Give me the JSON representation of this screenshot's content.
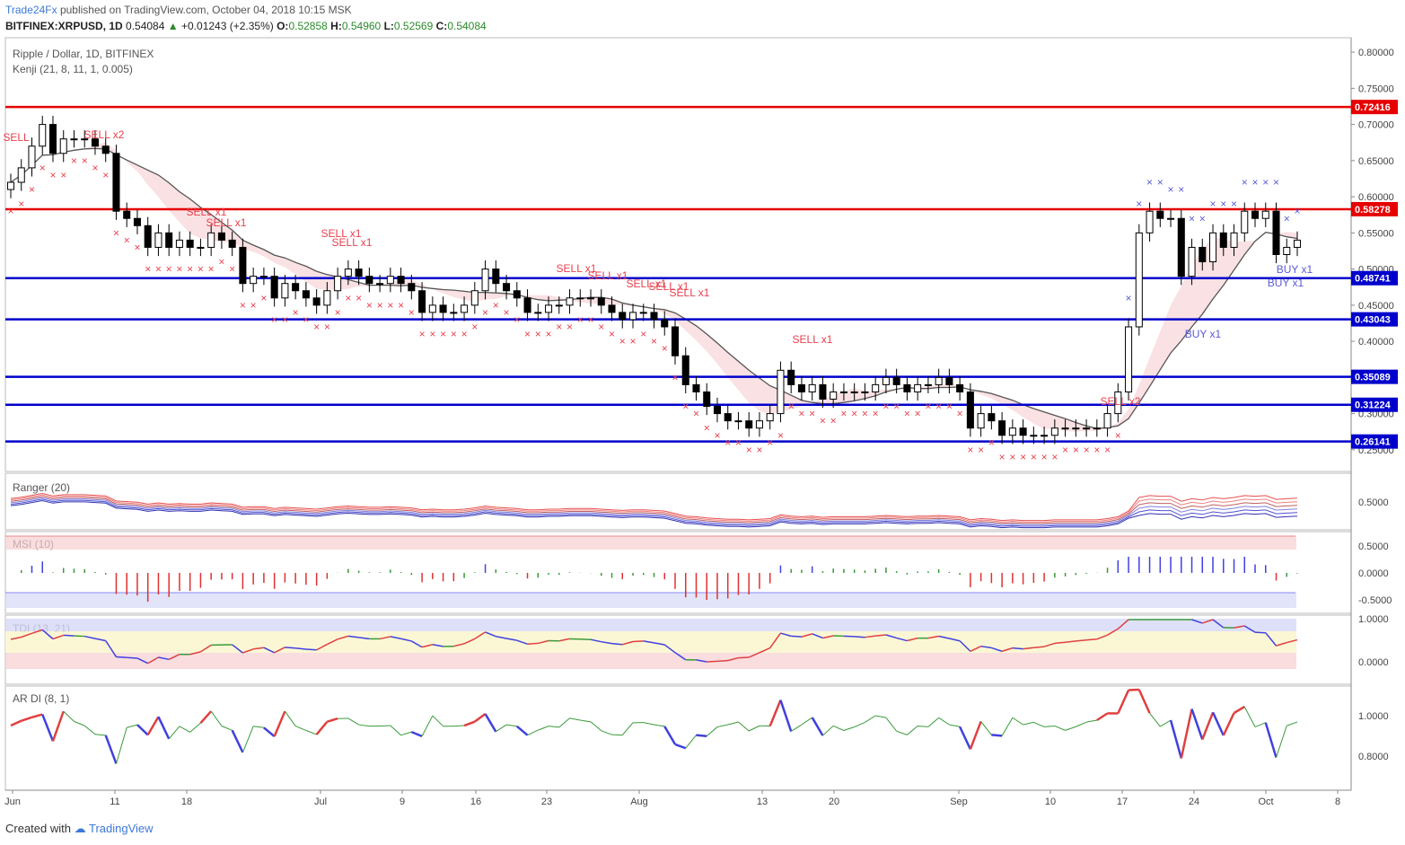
{
  "header": {
    "publisher": "Trade24Fx",
    "published_text": "published on TradingView.com, October 04, 2018 10:15 MSK",
    "symbol": "BITFINEX:XRPUSD, 1D",
    "last": "0.54084",
    "change": "+0.01243 (+2.35%)",
    "o_label": "O:",
    "o_value": "0.52858",
    "h_label": "H:",
    "h_value": "0.54960",
    "l_label": "L:",
    "l_value": "0.52569",
    "c_label": "C:",
    "c_value": "0.54084"
  },
  "main_pane": {
    "title": "Ripple / Dollar, 1D, BITFINEX",
    "indicator": "Kenji (21, 8, 11, 1, 0.005)"
  },
  "sub_panes": [
    {
      "title": "Ranger (20)",
      "ticks": [
        "0.5000"
      ]
    },
    {
      "title": "MSI (10)",
      "ticks": [
        "0.5000",
        "0.0000",
        "-0.5000"
      ]
    },
    {
      "title": "TDI (13, 21)",
      "ticks": [
        "1.0000",
        "0.0000"
      ]
    },
    {
      "title": "AR DI (8, 1)",
      "ticks": [
        "1.0000",
        "0.8000"
      ]
    }
  ],
  "footer": {
    "created_with": "Created with",
    "brand": "TradingView"
  },
  "colors": {
    "red_level": "#e60000",
    "blue_level": "#0000cc",
    "sell": "#e8414f",
    "buy": "#5b5bd6",
    "up_candle": "#ffffff",
    "down_candle": "#000000"
  },
  "chart_data": {
    "type": "candlestick",
    "title": "Ripple / Dollar, 1D, BITFINEX",
    "y_axis": {
      "min": 0.22,
      "max": 0.82,
      "ticks": [
        "0.80000",
        "0.75000",
        "0.70000",
        "0.65000",
        "0.60000",
        "0.55000",
        "0.50000",
        "0.45000",
        "0.40000",
        "0.35000",
        "0.30000",
        "0.25000"
      ]
    },
    "x_tick_labels": [
      "Jun",
      "11",
      "18",
      "Jul",
      "9",
      "16",
      "23",
      "Aug",
      "13",
      "20",
      "Sep",
      "10",
      "17",
      "24",
      "Oct",
      "8"
    ],
    "levels": [
      {
        "value": 0.72416,
        "label": "0.72416",
        "color": "red"
      },
      {
        "value": 0.58278,
        "label": "0.58278",
        "color": "red"
      },
      {
        "value": 0.48741,
        "label": "0.48741",
        "color": "blue"
      },
      {
        "value": 0.43043,
        "label": "0.43043",
        "color": "blue"
      },
      {
        "value": 0.35089,
        "label": "0.35089",
        "color": "blue"
      },
      {
        "value": 0.31224,
        "label": "0.31224",
        "color": "blue"
      },
      {
        "value": 0.26141,
        "label": "0.26141",
        "color": "blue"
      }
    ],
    "closes": [
      0.62,
      0.64,
      0.67,
      0.7,
      0.66,
      0.68,
      0.68,
      0.68,
      0.67,
      0.66,
      0.58,
      0.57,
      0.56,
      0.53,
      0.55,
      0.53,
      0.54,
      0.53,
      0.53,
      0.55,
      0.54,
      0.53,
      0.48,
      0.49,
      0.49,
      0.46,
      0.48,
      0.47,
      0.46,
      0.45,
      0.47,
      0.49,
      0.5,
      0.49,
      0.48,
      0.48,
      0.49,
      0.48,
      0.47,
      0.44,
      0.45,
      0.44,
      0.44,
      0.45,
      0.47,
      0.5,
      0.48,
      0.47,
      0.46,
      0.44,
      0.44,
      0.45,
      0.45,
      0.46,
      0.46,
      0.46,
      0.45,
      0.44,
      0.43,
      0.44,
      0.44,
      0.43,
      0.42,
      0.38,
      0.34,
      0.33,
      0.31,
      0.3,
      0.29,
      0.29,
      0.28,
      0.29,
      0.3,
      0.36,
      0.34,
      0.33,
      0.34,
      0.32,
      0.33,
      0.33,
      0.33,
      0.33,
      0.34,
      0.35,
      0.34,
      0.33,
      0.34,
      0.34,
      0.35,
      0.34,
      0.33,
      0.28,
      0.3,
      0.29,
      0.27,
      0.28,
      0.27,
      0.27,
      0.27,
      0.28,
      0.28,
      0.28,
      0.28,
      0.28,
      0.3,
      0.33,
      0.42,
      0.55,
      0.58,
      0.57,
      0.57,
      0.49,
      0.53,
      0.51,
      0.55,
      0.53,
      0.55,
      0.58,
      0.57,
      0.58,
      0.52,
      0.53,
      0.54
    ],
    "sell_signals": [
      "SELL",
      "SELL x2",
      "SELL x1",
      "SELL x1",
      "SELL x1",
      "SELL x1",
      "SELL x1",
      "SELL x1",
      "SELL x1",
      "SELL x1",
      "SELL x1",
      "SELL x1",
      "SELL x2",
      "SELL"
    ],
    "buy_signals": [
      "BUY x1",
      "BUY x1",
      "BUY x1"
    ]
  }
}
